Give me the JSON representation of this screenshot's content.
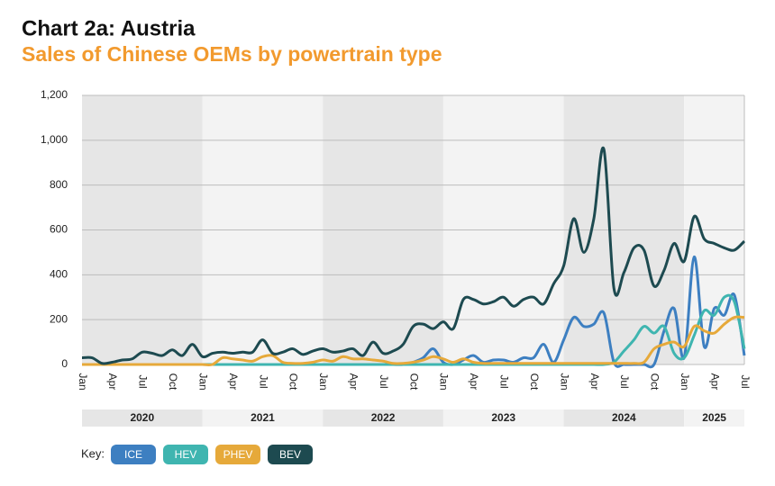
{
  "chart_data": {
    "type": "line",
    "title": "Chart 2a: Austria",
    "subtitle": "Sales of Chinese OEMs by powertrain type",
    "legend_label": "Key:",
    "years": [
      "2020",
      "2021",
      "2022",
      "2023",
      "2024",
      "2025"
    ],
    "categories": [
      "Jan",
      null,
      null,
      "Apr",
      null,
      null,
      "Jul",
      null,
      null,
      "Oct",
      null,
      null,
      "Jan",
      null,
      null,
      "Apr",
      null,
      null,
      "Jul",
      null,
      null,
      "Oct",
      null,
      null,
      "Jan",
      null,
      null,
      "Apr",
      null,
      null,
      "Jul",
      null,
      null,
      "Oct",
      null,
      null,
      "Jan",
      null,
      null,
      "Apr",
      null,
      null,
      "Jul",
      null,
      null,
      "Oct",
      null,
      null,
      "Jan",
      null,
      null,
      "Apr",
      null,
      null,
      "Jul",
      null,
      null,
      "Oct",
      null,
      null,
      "Jan",
      null,
      null,
      "Apr",
      null,
      null,
      "Jul"
    ],
    "ylim": [
      0,
      1200
    ],
    "yticks": [
      0,
      200,
      400,
      600,
      800,
      {
        "value": 1000,
        "label": "1,000"
      },
      {
        "value": 1200,
        "label": "1,200"
      }
    ],
    "grid": true,
    "series": [
      {
        "name": "ICE",
        "color": "#3d7fc1",
        "values": [
          0,
          0,
          0,
          0,
          0,
          0,
          0,
          0,
          0,
          0,
          0,
          0,
          0,
          0,
          0,
          0,
          0,
          0,
          0,
          0,
          0,
          0,
          0,
          0,
          0,
          0,
          0,
          0,
          0,
          0,
          0,
          0,
          0,
          10,
          30,
          70,
          10,
          0,
          20,
          40,
          10,
          20,
          20,
          10,
          30,
          30,
          90,
          10,
          110,
          210,
          170,
          180,
          230,
          10,
          0,
          0,
          0,
          0,
          150,
          250,
          30,
          480,
          80,
          250,
          220,
          310,
          40
        ]
      },
      {
        "name": "HEV",
        "color": "#3fb5b0",
        "values": [
          0,
          0,
          0,
          0,
          0,
          0,
          0,
          0,
          0,
          0,
          0,
          0,
          0,
          0,
          0,
          0,
          0,
          0,
          0,
          0,
          0,
          0,
          0,
          0,
          0,
          0,
          0,
          0,
          0,
          0,
          0,
          0,
          0,
          0,
          0,
          0,
          0,
          0,
          0,
          0,
          0,
          0,
          0,
          0,
          0,
          0,
          0,
          0,
          0,
          0,
          0,
          0,
          0,
          10,
          60,
          110,
          170,
          140,
          170,
          50,
          30,
          130,
          240,
          220,
          300,
          280,
          70
        ]
      },
      {
        "name": "PHEV",
        "color": "#e6a93a",
        "values": [
          0,
          0,
          0,
          0,
          0,
          0,
          0,
          0,
          0,
          0,
          0,
          0,
          0,
          0,
          30,
          25,
          20,
          15,
          35,
          40,
          10,
          5,
          5,
          10,
          20,
          15,
          35,
          25,
          25,
          20,
          15,
          5,
          5,
          10,
          20,
          35,
          25,
          10,
          25,
          10,
          5,
          5,
          5,
          5,
          5,
          5,
          5,
          5,
          5,
          5,
          5,
          5,
          5,
          5,
          5,
          5,
          10,
          70,
          90,
          100,
          80,
          170,
          150,
          140,
          180,
          210,
          210
        ]
      },
      {
        "name": "BEV",
        "color": "#1d4a50",
        "values": [
          30,
          30,
          5,
          10,
          20,
          25,
          55,
          50,
          40,
          65,
          40,
          90,
          35,
          50,
          55,
          50,
          55,
          55,
          110,
          50,
          55,
          70,
          45,
          60,
          70,
          55,
          60,
          70,
          40,
          100,
          50,
          60,
          90,
          170,
          180,
          160,
          190,
          160,
          290,
          290,
          270,
          280,
          300,
          260,
          290,
          300,
          270,
          360,
          440,
          650,
          500,
          650,
          960,
          340,
          410,
          520,
          510,
          350,
          420,
          540,
          460,
          660,
          560,
          540,
          520,
          510,
          550
        ]
      }
    ]
  }
}
